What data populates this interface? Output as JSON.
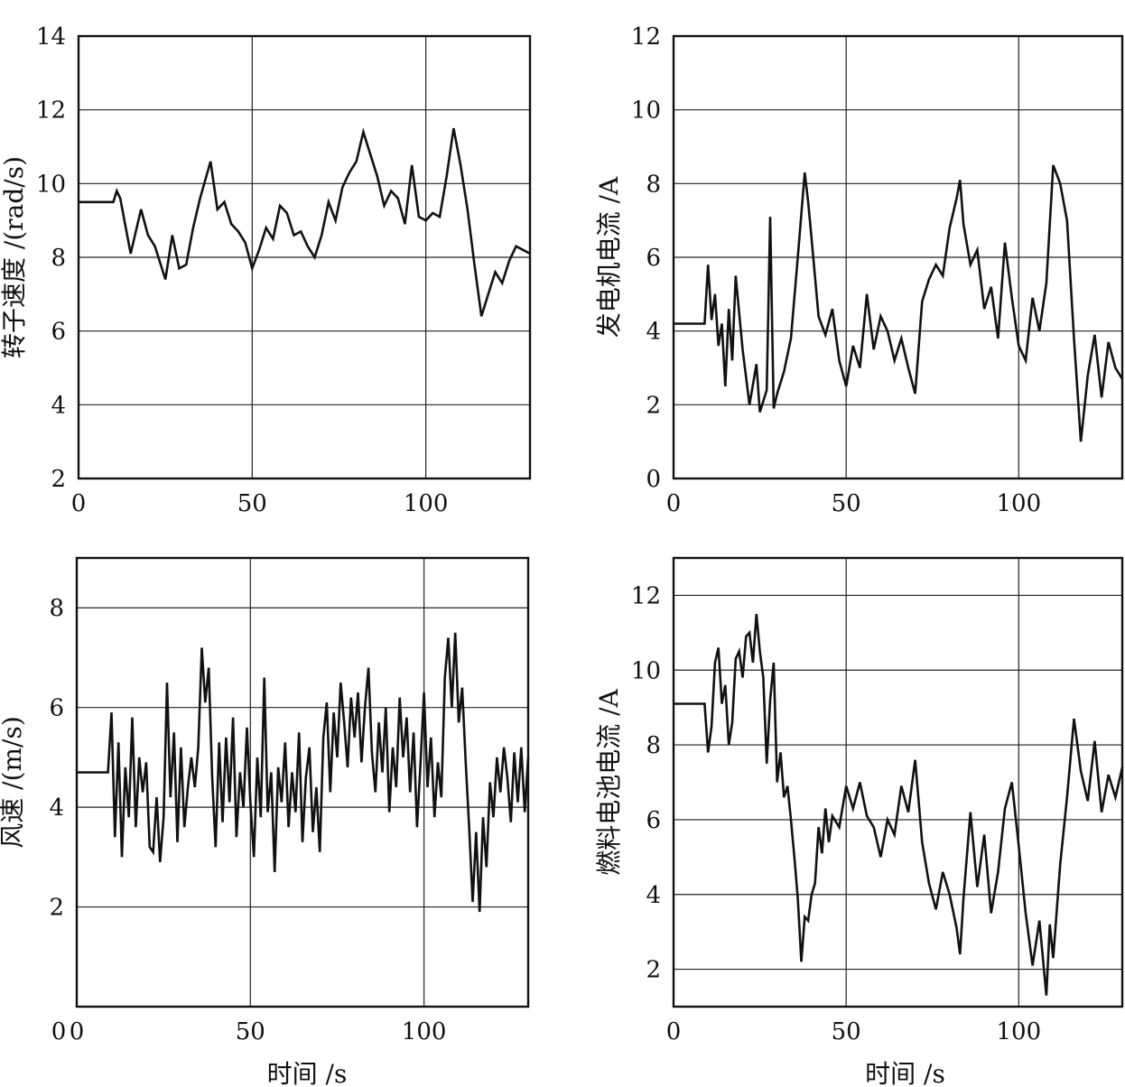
{
  "chart_data": [
    {
      "type": "line",
      "ylabel": "转子速度 /(rad/s)",
      "xlabel": "",
      "xlim": [
        0,
        130
      ],
      "ylim": [
        2,
        14
      ],
      "xticks": [
        "0",
        "50",
        "100"
      ],
      "yticks": [
        "2",
        "4",
        "6",
        "8",
        "10",
        "12",
        "14"
      ],
      "grid": true,
      "series": [
        {
          "x": [
            0,
            10,
            11,
            12,
            15,
            18,
            20,
            22,
            25,
            27,
            29,
            31,
            33,
            35,
            38,
            40,
            42,
            44,
            46,
            48,
            50,
            52,
            54,
            56,
            58,
            60,
            62,
            64,
            66,
            68,
            70,
            72,
            74,
            76,
            78,
            80,
            82,
            84,
            86,
            88,
            90,
            92,
            94,
            96,
            98,
            100,
            102,
            104,
            106,
            108,
            110,
            112,
            114,
            116,
            118,
            120,
            122,
            124,
            126,
            128,
            130
          ],
          "values": [
            9.5,
            9.5,
            9.8,
            9.6,
            8.1,
            9.3,
            8.6,
            8.3,
            7.4,
            8.6,
            7.7,
            7.8,
            8.8,
            9.6,
            10.6,
            9.3,
            9.5,
            8.9,
            8.7,
            8.4,
            7.7,
            8.2,
            8.8,
            8.5,
            9.4,
            9.2,
            8.6,
            8.7,
            8.3,
            8.0,
            8.6,
            9.5,
            9.0,
            9.9,
            10.3,
            10.6,
            11.4,
            10.8,
            10.2,
            9.4,
            9.8,
            9.6,
            8.9,
            10.5,
            9.1,
            9.0,
            9.2,
            9.1,
            10.2,
            11.5,
            10.5,
            9.3,
            7.8,
            6.4,
            7.0,
            7.6,
            7.3,
            7.9,
            8.3,
            8.2,
            8.1
          ]
        }
      ]
    },
    {
      "type": "line",
      "ylabel": "发电机电流 /A",
      "xlabel": "",
      "xlim": [
        0,
        130
      ],
      "ylim": [
        0,
        12
      ],
      "xticks": [
        "0",
        "50",
        "100"
      ],
      "yticks": [
        "0",
        "2",
        "4",
        "6",
        "8",
        "10",
        "12"
      ],
      "grid": true,
      "series": [
        {
          "x": [
            0,
            9,
            10,
            11,
            12,
            13,
            14,
            15,
            16,
            17,
            18,
            20,
            22,
            24,
            25,
            27,
            28,
            29,
            30,
            32,
            34,
            36,
            38,
            39,
            40,
            42,
            44,
            46,
            48,
            50,
            52,
            54,
            56,
            58,
            60,
            62,
            64,
            66,
            68,
            70,
            72,
            74,
            76,
            78,
            80,
            82,
            83,
            84,
            86,
            88,
            90,
            92,
            94,
            96,
            98,
            100,
            102,
            104,
            106,
            108,
            110,
            112,
            114,
            116,
            118,
            120,
            122,
            124,
            126,
            128,
            130
          ],
          "values": [
            4.2,
            4.2,
            5.8,
            4.3,
            5.0,
            3.6,
            4.2,
            2.5,
            4.6,
            3.2,
            5.5,
            3.5,
            2.0,
            3.1,
            1.8,
            2.4,
            7.1,
            1.9,
            2.3,
            2.9,
            3.8,
            6.0,
            8.3,
            7.5,
            6.5,
            4.4,
            3.9,
            4.6,
            3.2,
            2.5,
            3.6,
            3.0,
            5.0,
            3.5,
            4.4,
            4.0,
            3.2,
            3.8,
            3.0,
            2.3,
            4.8,
            5.4,
            5.8,
            5.5,
            6.8,
            7.6,
            8.1,
            6.9,
            5.8,
            6.2,
            4.6,
            5.2,
            3.8,
            6.4,
            4.9,
            3.6,
            3.2,
            4.9,
            4.0,
            5.3,
            8.5,
            8.0,
            7.0,
            3.8,
            1.0,
            2.8,
            3.9,
            2.2,
            3.7,
            3.0,
            2.7
          ]
        }
      ]
    },
    {
      "type": "line",
      "ylabel": "风速 /(m/s)",
      "xlabel": "",
      "xlim": [
        0,
        130
      ],
      "ylim": [
        0,
        9
      ],
      "xticks": [
        "0",
        "50",
        "100"
      ],
      "yticks": [
        "2",
        "4",
        "6",
        "8"
      ],
      "extra_labels": [
        "0"
      ],
      "grid": true,
      "series": [
        {
          "x": [
            0,
            9,
            10,
            11,
            12,
            13,
            14,
            15,
            16,
            17,
            18,
            19,
            20,
            21,
            22,
            23,
            24,
            25,
            26,
            27,
            28,
            29,
            30,
            31,
            32,
            33,
            34,
            35,
            36,
            37,
            38,
            39,
            40,
            41,
            42,
            43,
            44,
            45,
            46,
            47,
            48,
            49,
            50,
            51,
            52,
            53,
            54,
            55,
            56,
            57,
            58,
            59,
            60,
            61,
            62,
            63,
            64,
            65,
            66,
            67,
            68,
            69,
            70,
            71,
            72,
            73,
            74,
            75,
            76,
            77,
            78,
            79,
            80,
            81,
            82,
            83,
            84,
            85,
            86,
            87,
            88,
            89,
            90,
            91,
            92,
            93,
            94,
            95,
            96,
            97,
            98,
            99,
            100,
            101,
            102,
            103,
            104,
            105,
            106,
            107,
            108,
            109,
            110,
            111,
            112,
            113,
            114,
            115,
            116,
            117,
            118,
            119,
            120,
            121,
            122,
            123,
            124,
            125,
            126,
            127,
            128,
            129,
            130
          ],
          "values": [
            4.7,
            4.7,
            5.9,
            3.4,
            5.3,
            3.0,
            4.8,
            3.8,
            5.8,
            3.6,
            5.0,
            4.3,
            4.9,
            3.2,
            3.1,
            4.2,
            2.9,
            3.8,
            6.5,
            4.2,
            5.5,
            3.3,
            5.2,
            3.6,
            4.4,
            5.0,
            4.4,
            5.2,
            7.2,
            6.1,
            6.8,
            4.6,
            3.2,
            5.3,
            3.7,
            5.4,
            4.1,
            5.8,
            3.4,
            4.7,
            4.0,
            5.6,
            4.1,
            3.0,
            5.0,
            3.8,
            6.6,
            3.9,
            4.7,
            2.7,
            4.8,
            4.1,
            5.3,
            3.6,
            4.7,
            3.9,
            5.5,
            3.3,
            4.6,
            5.2,
            3.5,
            4.4,
            3.1,
            5.4,
            6.1,
            4.3,
            5.9,
            5.0,
            6.5,
            5.7,
            4.8,
            6.2,
            5.4,
            6.3,
            4.9,
            6.0,
            6.8,
            5.1,
            4.3,
            5.7,
            4.7,
            6.0,
            3.9,
            5.2,
            4.4,
            6.2,
            5.0,
            5.8,
            4.3,
            5.5,
            3.6,
            4.9,
            6.3,
            4.4,
            5.4,
            3.8,
            4.9,
            4.2,
            6.6,
            7.4,
            6.0,
            7.5,
            5.7,
            6.4,
            4.9,
            3.6,
            2.1,
            3.5,
            1.9,
            3.8,
            2.8,
            4.5,
            3.8,
            5.0,
            4.3,
            5.2,
            4.6,
            3.7,
            5.1,
            4.1,
            5.2,
            3.9,
            5.0
          ]
        }
      ]
    },
    {
      "type": "line",
      "ylabel": "燃料电池电流 /A",
      "xlabel": "时间 /s",
      "xlim": [
        0,
        130
      ],
      "ylim": [
        1,
        13
      ],
      "xticks": [
        "0",
        "50",
        "100"
      ],
      "yticks": [
        "2",
        "4",
        "6",
        "8",
        "10",
        "12"
      ],
      "grid": true,
      "series": [
        {
          "x": [
            0,
            9,
            10,
            11,
            12,
            13,
            14,
            15,
            16,
            17,
            18,
            19,
            20,
            21,
            22,
            23,
            24,
            25,
            26,
            27,
            28,
            29,
            30,
            31,
            32,
            33,
            34,
            35,
            36,
            37,
            38,
            39,
            40,
            41,
            42,
            43,
            44,
            45,
            46,
            48,
            50,
            52,
            54,
            56,
            58,
            60,
            62,
            64,
            66,
            68,
            70,
            72,
            74,
            76,
            78,
            80,
            82,
            83,
            84,
            86,
            88,
            90,
            92,
            94,
            96,
            98,
            100,
            102,
            104,
            106,
            108,
            109,
            110,
            112,
            114,
            116,
            118,
            120,
            122,
            124,
            126,
            128,
            130
          ],
          "values": [
            9.1,
            9.1,
            7.8,
            8.5,
            10.2,
            10.6,
            9.1,
            9.6,
            8.0,
            8.6,
            10.3,
            10.5,
            9.8,
            10.9,
            11.0,
            10.2,
            11.5,
            10.5,
            9.8,
            7.5,
            9.2,
            10.2,
            7.0,
            7.8,
            6.6,
            6.9,
            6.0,
            5.0,
            3.9,
            2.2,
            3.4,
            3.3,
            4.0,
            4.3,
            5.8,
            5.1,
            6.3,
            5.4,
            6.1,
            5.8,
            6.9,
            6.3,
            7.0,
            6.1,
            5.8,
            5.0,
            6.0,
            5.6,
            6.9,
            6.2,
            7.6,
            5.4,
            4.3,
            3.6,
            4.6,
            4.0,
            3.1,
            2.4,
            3.9,
            6.2,
            4.2,
            5.6,
            3.5,
            4.6,
            6.3,
            7.0,
            5.3,
            3.5,
            2.1,
            3.3,
            1.3,
            3.2,
            2.3,
            4.8,
            6.6,
            8.7,
            7.3,
            6.5,
            8.1,
            6.2,
            7.2,
            6.6,
            7.4
          ]
        }
      ]
    }
  ]
}
